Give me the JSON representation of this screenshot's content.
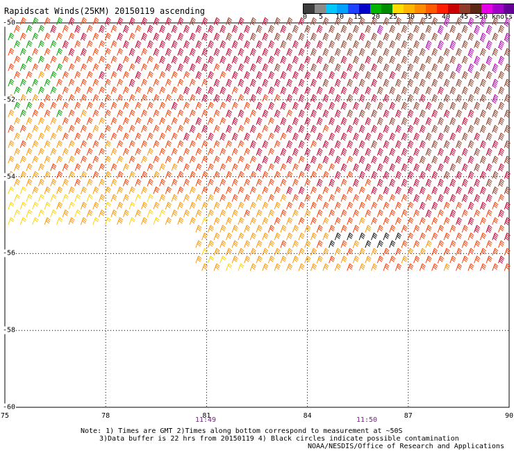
{
  "title": "Rapidscat Winds(25KM) 20150119 ascending",
  "colorbar": {
    "colors": [
      "#3c3c3c",
      "#8a8a8a",
      "#00c8ff",
      "#00a0ff",
      "#1e40ff",
      "#0000c8",
      "#00b400",
      "#008c00",
      "#ffdc00",
      "#ffb400",
      "#ff8c00",
      "#ff5a00",
      "#ff1e00",
      "#c80000",
      "#8c3c28",
      "#5a2814",
      "#e600e6",
      "#a000c8",
      "#640096"
    ],
    "labels": [
      "0",
      "5",
      "10",
      "15",
      "20",
      "25",
      "30",
      "35",
      "40",
      "45",
      ">50 knots"
    ]
  },
  "lat_labels": [
    "-50",
    "-52",
    "-54",
    "-56",
    "-58",
    "-60"
  ],
  "lon_labels": [
    "75",
    "78",
    "81",
    "84",
    "87",
    "90"
  ],
  "time_labels": [
    "11:49",
    "11:50"
  ],
  "notes": {
    "line1": "Note: 1) Times are GMT 2)Times along bottom correspond to measurement at ~50S",
    "line2": "3)Data buffer is 22 hrs from 20150119 4) Black circles indicate possible contamination",
    "line3": "NOAA/NESDIS/Office of Research and Applications"
  },
  "chart_data": {
    "type": "wind-barb-map",
    "title": "Rapidscat Winds(25KM) 20150119 ascending",
    "lon_range": [
      75,
      90
    ],
    "lat_range": [
      -60,
      -50
    ],
    "speed_unit": "knots",
    "speed_colors": [
      {
        "max": 5,
        "color": "#3c3c3c"
      },
      {
        "max": 10,
        "color": "#00c8ff"
      },
      {
        "max": 15,
        "color": "#1e40ff"
      },
      {
        "max": 20,
        "color": "#00a000"
      },
      {
        "max": 25,
        "color": "#ffd200"
      },
      {
        "max": 30,
        "color": "#ff9600"
      },
      {
        "max": 35,
        "color": "#ff3c00"
      },
      {
        "max": 40,
        "color": "#c80032"
      },
      {
        "max": 45,
        "color": "#8c3c28"
      },
      {
        "max": 999,
        "color": "#b400b4"
      }
    ],
    "coverage": [
      {
        "lon_from": 75,
        "lon_to": 80.5,
        "lat_from": -55.3,
        "lat_to": -50
      },
      {
        "lon_from": 80.5,
        "lon_to": 90,
        "lat_from": -56.6,
        "lat_to": -50
      }
    ],
    "wind_direction_deg": 250,
    "black_barb_area": {
      "lon_from": 84.6,
      "lon_to": 86.7,
      "lat_from": -55.9,
      "lat_to": -55.5
    },
    "green_barb_area": {
      "lon_from": 75,
      "lon_to": 76.6,
      "lat_from": -52.6,
      "lat_to": -50
    }
  }
}
